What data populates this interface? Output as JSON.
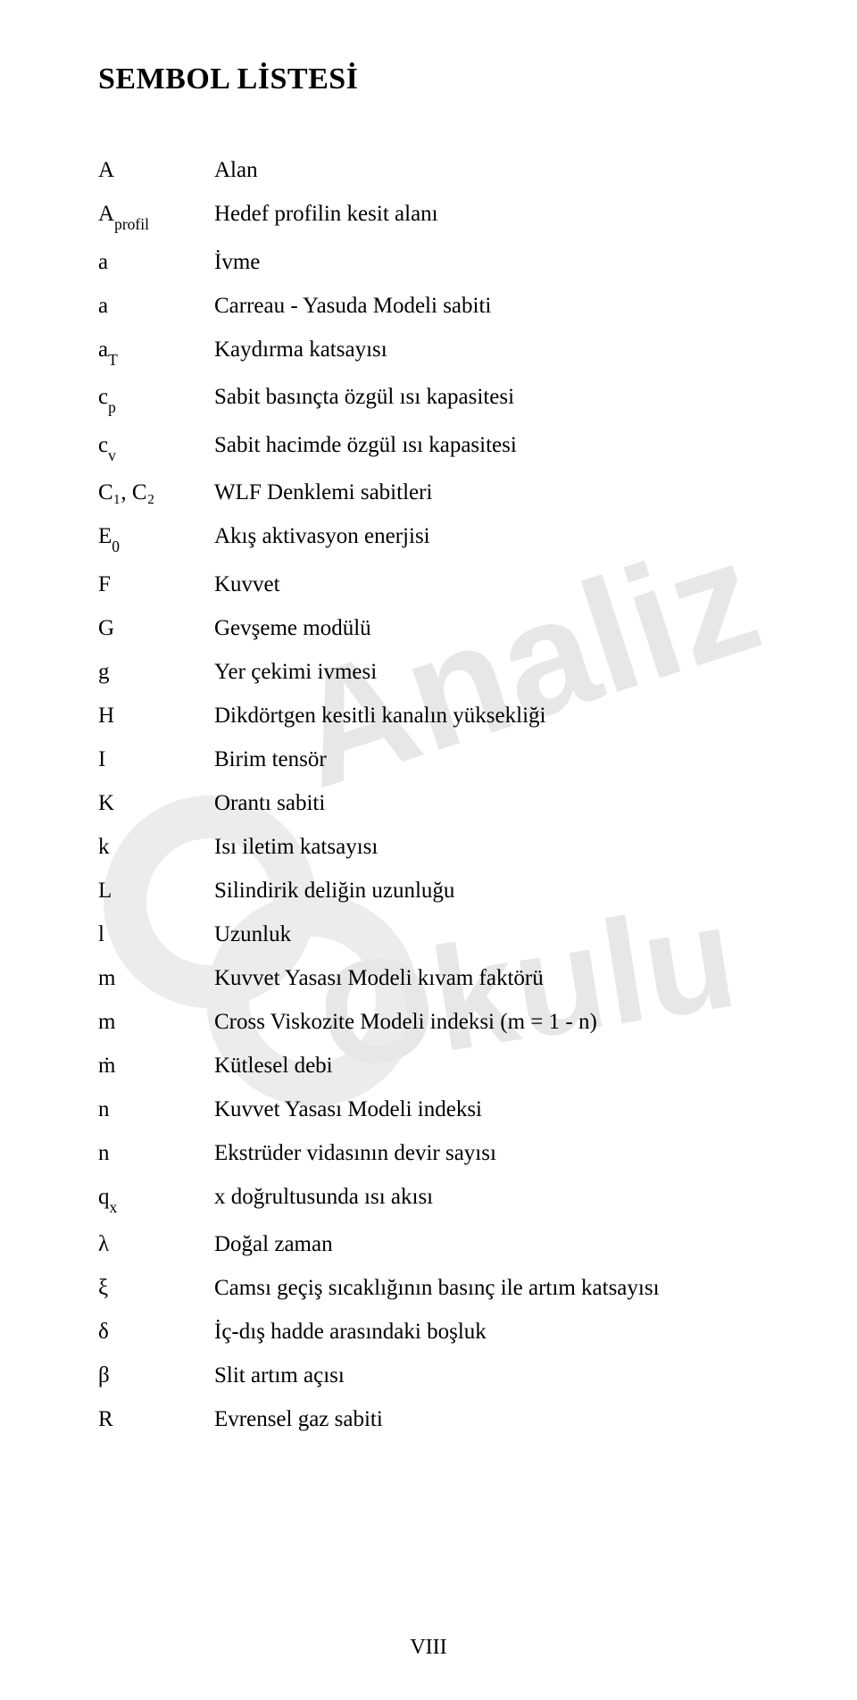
{
  "title": "SEMBOL LİSTESİ",
  "page_number": "VIII",
  "watermark": {
    "line1": "Analiz",
    "line2": "Okulu",
    "shape_color": "#ececec",
    "text_color": "#e7e7e7",
    "font_size_line1": 180,
    "font_size_line2": 165
  },
  "rows": [
    {
      "sym": "A",
      "sub": "",
      "desc": "Alan"
    },
    {
      "sym": "A",
      "sub": "profil",
      "desc": "Hedef profilin kesit alanı"
    },
    {
      "sym": "a",
      "sub": "",
      "desc": "İvme"
    },
    {
      "sym": "a",
      "sub": "",
      "desc": "Carreau - Yasuda Modeli sabiti"
    },
    {
      "sym": "a",
      "sub": "T",
      "desc": "Kaydırma katsayısı"
    },
    {
      "sym": "c",
      "sub": "p",
      "desc": "Sabit basınçta özgül ısı kapasitesi"
    },
    {
      "sym": "c",
      "sub": "v",
      "desc": "Sabit hacimde özgül ısı kapasitesi"
    },
    {
      "sym": "C₁, C₂",
      "sub": "",
      "desc": "WLF Denklemi sabitleri"
    },
    {
      "sym": "E",
      "sub": "0",
      "desc": "Akış aktivasyon enerjisi"
    },
    {
      "sym": "F",
      "sub": "",
      "desc": "Kuvvet"
    },
    {
      "sym": "G",
      "sub": "",
      "desc": "Gevşeme modülü"
    },
    {
      "sym": "g",
      "sub": "",
      "desc": "Yer çekimi ivmesi"
    },
    {
      "sym": "H",
      "sub": "",
      "desc": "Dikdörtgen kesitli kanalın yüksekliği"
    },
    {
      "sym": "I",
      "sub": "",
      "desc": "Birim tensör"
    },
    {
      "sym": "K",
      "sub": "",
      "desc": "Orantı sabiti"
    },
    {
      "sym": "k",
      "sub": "",
      "desc": "Isı iletim katsayısı"
    },
    {
      "sym": "L",
      "sub": "",
      "desc": "Silindirik deliğin uzunluğu"
    },
    {
      "sym": "l",
      "sub": "",
      "desc": "Uzunluk"
    },
    {
      "sym": "m",
      "sub": "",
      "desc": "Kuvvet Yasası Modeli kıvam faktörü"
    },
    {
      "sym": "m",
      "sub": "",
      "desc": "Cross Viskozite Modeli indeksi (m = 1 - n)"
    },
    {
      "sym": "ṁ",
      "sub": "",
      "desc": "Kütlesel debi"
    },
    {
      "sym": "n",
      "sub": "",
      "desc": "Kuvvet Yasası Modeli indeksi"
    },
    {
      "sym": "n",
      "sub": "",
      "desc": "Ekstrüder vidasının devir sayısı"
    },
    {
      "sym": "q",
      "sub": "x",
      "desc": "x doğrultusunda ısı akısı"
    },
    {
      "sym": "λ",
      "sub": "",
      "desc": "Doğal zaman"
    },
    {
      "sym": "ξ",
      "sub": "",
      "desc": "Camsı geçiş sıcaklığının basınç ile artım katsayısı"
    },
    {
      "sym": "δ",
      "sub": "",
      "desc": "İç-dış hadde arasındaki boşluk"
    },
    {
      "sym": "β",
      "sub": "",
      "desc": "Slit artım açısı"
    },
    {
      "sym": "R",
      "sub": "",
      "desc": "Evrensel gaz sabiti"
    }
  ]
}
